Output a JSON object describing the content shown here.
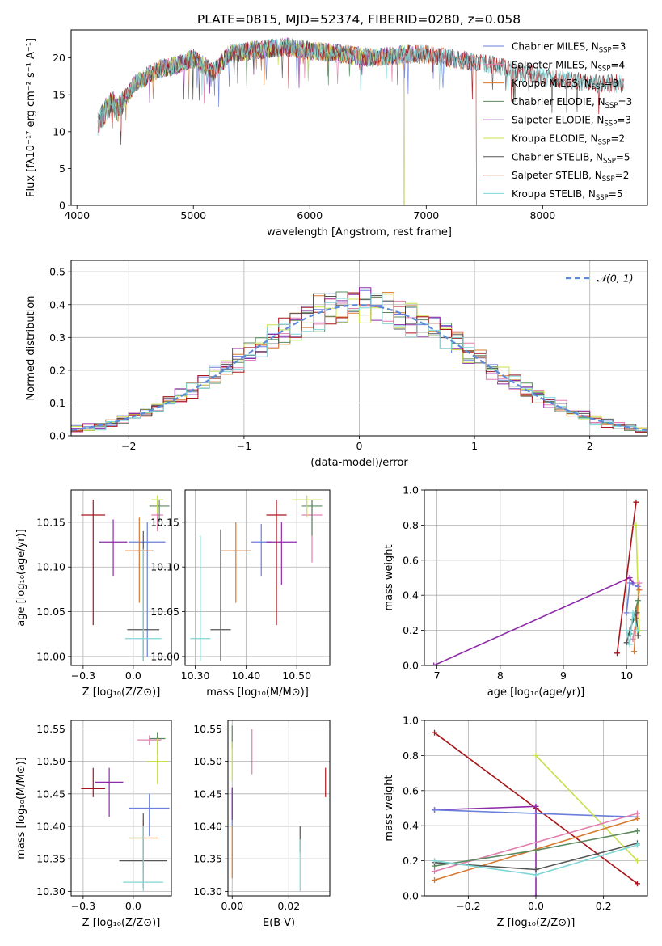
{
  "figure_title": "PLATE=0815, MJD=52374, FIBERID=0280, z=0.058",
  "palette": [
    "#6a7fdb",
    "#e27fb1",
    "#d8792f",
    "#5b8a5f",
    "#8e2ca8",
    "#c8e04a",
    "#555555",
    "#a8161c",
    "#7fd6d6"
  ],
  "chart_data": [
    {
      "id": "spectrum",
      "type": "line",
      "title": "PLATE=0815, MJD=52374, FIBERID=0280, z=0.058",
      "xlabel": "wavelength [Angstrom, rest frame]",
      "ylabel": "Flux [fλ10⁻¹⁷ erg cm⁻² s⁻¹ A⁻¹]",
      "xlim": [
        3950,
        8900
      ],
      "ylim": [
        0,
        23.8
      ],
      "xticks": [
        4000,
        5000,
        6000,
        7000,
        8000
      ],
      "yticks": [
        0,
        5,
        10,
        15,
        20
      ],
      "grid": false,
      "legend_position": "top-right",
      "spectrum_shape": {
        "x": [
          4180,
          4250,
          4300,
          4350,
          4500,
          4700,
          4860,
          5000,
          5170,
          5300,
          5500,
          5800,
          6000,
          6300,
          6560,
          6800,
          7000,
          7200,
          7400,
          7600,
          7800,
          8000,
          8200,
          8500
        ],
        "y": [
          11,
          13,
          14,
          13,
          16.5,
          18.5,
          19,
          20,
          18,
          20.5,
          21,
          21.5,
          21,
          20.5,
          20,
          20.5,
          20.5,
          20,
          19.5,
          19,
          18,
          17.5,
          17,
          16.5
        ]
      },
      "series": [
        {
          "name": "Chabrier MILES, N_SSP=3",
          "label_main": "Chabrier MILES, N",
          "label_sub": "SSP",
          "label_tail": "=3",
          "end": 7420
        },
        {
          "name": "Salpeter MILES, N_SSP=4",
          "label_main": "Salpeter MILES, N",
          "label_sub": "SSP",
          "label_tail": "=4",
          "end": 7420
        },
        {
          "name": "Kroupa MILES, N_SSP=3",
          "label_main": "Kroupa MILES, N",
          "label_sub": "SSP",
          "label_tail": "=3",
          "end": 7420
        },
        {
          "name": "Chabrier ELODIE, N_SSP=3",
          "label_main": "Chabrier ELODIE, N",
          "label_sub": "SSP",
          "label_tail": "=3",
          "end": 6800
        },
        {
          "name": "Salpeter ELODIE, N_SSP=3",
          "label_main": "Salpeter ELODIE, N",
          "label_sub": "SSP",
          "label_tail": "=3",
          "end": 6800
        },
        {
          "name": "Kroupa ELODIE, N_SSP=2",
          "label_main": "Kroupa ELODIE, N",
          "label_sub": "SSP",
          "label_tail": "=2",
          "end": 6800
        },
        {
          "name": "Chabrier STELIB, N_SSP=5",
          "label_main": "Chabrier STELIB, N",
          "label_sub": "SSP",
          "label_tail": "=5",
          "end": 8700
        },
        {
          "name": "Salpeter STELIB, N_SSP=2",
          "label_main": "Salpeter STELIB, N",
          "label_sub": "SSP",
          "label_tail": "=2",
          "end": 8700
        },
        {
          "name": "Kroupa STELIB, N_SSP=5",
          "label_main": "Kroupa STELIB, N",
          "label_sub": "SSP",
          "label_tail": "=5",
          "end": 8700
        }
      ]
    },
    {
      "id": "residuals",
      "type": "histogram",
      "xlabel": "(data-model)/error",
      "ylabel": "Normed distribution",
      "xlim": [
        -2.5,
        2.5
      ],
      "ylim": [
        0,
        0.535
      ],
      "xticks": [
        -2,
        -1,
        0,
        1,
        2
      ],
      "yticks": [
        0.0,
        0.1,
        0.2,
        0.3,
        0.4,
        0.5
      ],
      "grid": true,
      "legend_position": "top-right",
      "reference_curve": {
        "name": "N(0,1)",
        "label_script": "𝒩(0, 1)",
        "color": "#5b8bd8",
        "style": "dashed"
      },
      "bin_edges": [
        -2.5,
        -2.4,
        -2.3,
        -2.2,
        -2.1,
        -2.0,
        -1.9,
        -1.8,
        -1.7,
        -1.6,
        -1.5,
        -1.4,
        -1.3,
        -1.2,
        -1.1,
        -1.0,
        -0.9,
        -0.8,
        -0.7,
        -0.6,
        -0.5,
        -0.4,
        -0.3,
        -0.2,
        -0.1,
        0.0,
        0.1,
        0.2,
        0.3,
        0.4,
        0.5,
        0.6,
        0.7,
        0.8,
        0.9,
        1.0,
        1.1,
        1.2,
        1.3,
        1.4,
        1.5,
        1.6,
        1.7,
        1.8,
        1.9,
        2.0,
        2.1,
        2.2,
        2.3,
        2.4,
        2.5
      ]
    },
    {
      "id": "age-vs-Z",
      "type": "errorbar",
      "xlabel": "Z [log₁₀(Z/Z⊙)]",
      "ylabel": "age  [log₁₀(age/yr)]",
      "xlim": [
        -0.31,
        0.19
      ],
      "ylim": [
        9.99,
        10.186
      ],
      "xticks": [
        -0.25,
        0.0
      ],
      "yticks": [
        10.0,
        10.05,
        10.1,
        10.15
      ],
      "grid": true,
      "points": [
        {
          "s": 0,
          "x": 0.07,
          "y": 10.128,
          "ex": 0.09,
          "ey": [
            10.0,
            10.15
          ]
        },
        {
          "s": 1,
          "x": 0.12,
          "y": 10.158,
          "ex": 0.03,
          "ey": [
            10.14,
            10.175
          ]
        },
        {
          "s": 2,
          "x": 0.03,
          "y": 10.118,
          "ex": 0.07,
          "ey": [
            10.06,
            10.155
          ]
        },
        {
          "s": 3,
          "x": 0.13,
          "y": 10.168,
          "ex": 0.05,
          "ey": [
            10.15,
            10.175
          ]
        },
        {
          "s": 4,
          "x": -0.1,
          "y": 10.128,
          "ex": 0.07,
          "ey": [
            10.09,
            10.153
          ]
        },
        {
          "s": 5,
          "x": 0.12,
          "y": 10.175,
          "ex": 0.03,
          "ey": [
            10.16,
            10.18
          ]
        },
        {
          "s": 6,
          "x": 0.05,
          "y": 10.03,
          "ex": 0.08,
          "ey": [
            9.995,
            10.14
          ]
        },
        {
          "s": 7,
          "x": -0.2,
          "y": 10.158,
          "ex": 0.06,
          "ey": [
            10.035,
            10.175
          ]
        },
        {
          "s": 8,
          "x": 0.05,
          "y": 10.02,
          "ex": 0.09,
          "ey": [
            9.995,
            10.12
          ]
        }
      ]
    },
    {
      "id": "age-vs-mass",
      "type": "errorbar",
      "xlabel": "mass [log₁₀(M/M⊙)]",
      "ylabel": "",
      "xlim": [
        10.28,
        10.565
      ],
      "ylim": [
        9.99,
        10.186
      ],
      "xticks": [
        10.3,
        10.4,
        10.5
      ],
      "yticks": [
        10.0,
        10.05,
        10.1,
        10.15
      ],
      "grid": true,
      "points": [
        {
          "s": 0,
          "x": 10.43,
          "y": 10.128,
          "ex": 0.02,
          "ey": [
            10.09,
            10.148
          ]
        },
        {
          "s": 1,
          "x": 10.53,
          "y": 10.158,
          "ex": 0.02,
          "ey": [
            10.105,
            10.175
          ]
        },
        {
          "s": 2,
          "x": 10.38,
          "y": 10.118,
          "ex": 0.03,
          "ey": [
            10.06,
            10.15
          ]
        },
        {
          "s": 3,
          "x": 10.53,
          "y": 10.168,
          "ex": 0.02,
          "ey": [
            10.135,
            10.175
          ]
        },
        {
          "s": 4,
          "x": 10.47,
          "y": 10.128,
          "ex": 0.03,
          "ey": [
            10.08,
            10.15
          ]
        },
        {
          "s": 5,
          "x": 10.52,
          "y": 10.175,
          "ex": 0.03,
          "ey": [
            10.155,
            10.18
          ]
        },
        {
          "s": 6,
          "x": 10.35,
          "y": 10.03,
          "ex": 0.02,
          "ey": [
            9.995,
            10.142
          ]
        },
        {
          "s": 7,
          "x": 10.46,
          "y": 10.158,
          "ex": 0.02,
          "ey": [
            10.035,
            10.175
          ]
        },
        {
          "s": 8,
          "x": 10.31,
          "y": 10.02,
          "ex": 0.02,
          "ey": [
            9.995,
            10.135
          ]
        }
      ]
    },
    {
      "id": "weight-vs-age",
      "type": "line",
      "xlabel": "age  [log₁₀(age/yr)]",
      "ylabel": "mass weight",
      "xlim": [
        6.8,
        10.33
      ],
      "ylim": [
        0,
        1.0
      ],
      "xticks": [
        7,
        8,
        9,
        10
      ],
      "yticks": [
        0.0,
        0.2,
        0.4,
        0.6,
        0.8,
        1.0
      ],
      "grid": true,
      "lines": [
        {
          "s": 4,
          "x": [
            6.95,
            10.05,
            10.1
          ],
          "y": [
            0.0,
            0.5,
            0.47
          ]
        },
        {
          "s": 7,
          "x": [
            9.85,
            10.15
          ],
          "y": [
            0.07,
            0.93
          ]
        },
        {
          "s": 5,
          "x": [
            10.15,
            10.2
          ],
          "y": [
            0.8,
            0.2
          ]
        },
        {
          "s": 0,
          "x": [
            10.0,
            10.05,
            10.18
          ],
          "y": [
            0.3,
            0.47,
            0.45
          ]
        },
        {
          "s": 1,
          "x": [
            10.1,
            10.17,
            10.2
          ],
          "y": [
            0.15,
            0.3,
            0.47
          ]
        },
        {
          "s": 2,
          "x": [
            10.12,
            10.15,
            10.2
          ],
          "y": [
            0.08,
            0.27,
            0.43
          ]
        },
        {
          "s": 3,
          "x": [
            10.05,
            10.1,
            10.18
          ],
          "y": [
            0.18,
            0.26,
            0.37
          ]
        },
        {
          "s": 6,
          "x": [
            10.0,
            10.05,
            10.15,
            10.18
          ],
          "y": [
            0.13,
            0.2,
            0.3,
            0.17
          ]
        },
        {
          "s": 8,
          "x": [
            10.0,
            10.05,
            10.1,
            10.17
          ],
          "y": [
            0.2,
            0.12,
            0.3,
            0.2
          ]
        }
      ]
    },
    {
      "id": "mass-vs-Z",
      "type": "errorbar",
      "xlabel": "Z [log₁₀(Z/Z⊙)]",
      "ylabel": "mass [log₁₀(M/M⊙)]",
      "xlim": [
        -0.31,
        0.19
      ],
      "ylim": [
        10.293,
        10.563
      ],
      "xticks": [
        -0.25,
        0.0
      ],
      "yticks": [
        10.3,
        10.35,
        10.4,
        10.45,
        10.5,
        10.55
      ],
      "grid": true,
      "points": [
        {
          "s": 0,
          "x": 0.08,
          "y": 10.428,
          "ex": 0.1,
          "ey": [
            10.385,
            10.45
          ]
        },
        {
          "s": 1,
          "x": 0.08,
          "y": 10.533,
          "ex": 0.06,
          "ey": [
            10.525,
            10.54
          ]
        },
        {
          "s": 2,
          "x": 0.05,
          "y": 10.382,
          "ex": 0.07,
          "ey": [
            10.33,
            10.41
          ]
        },
        {
          "s": 3,
          "x": 0.12,
          "y": 10.535,
          "ex": 0.04,
          "ey": [
            10.51,
            10.545
          ]
        },
        {
          "s": 4,
          "x": -0.12,
          "y": 10.468,
          "ex": 0.07,
          "ey": [
            10.415,
            10.49
          ]
        },
        {
          "s": 5,
          "x": 0.12,
          "y": 10.5,
          "ex": 0.05,
          "ey": [
            10.465,
            10.535
          ]
        },
        {
          "s": 6,
          "x": 0.05,
          "y": 10.347,
          "ex": 0.12,
          "ey": [
            10.305,
            10.42
          ]
        },
        {
          "s": 7,
          "x": -0.2,
          "y": 10.458,
          "ex": 0.06,
          "ey": [
            10.445,
            10.49
          ]
        },
        {
          "s": 8,
          "x": 0.05,
          "y": 10.314,
          "ex": 0.1,
          "ey": [
            10.3,
            10.4
          ]
        }
      ]
    },
    {
      "id": "mass-vs-ebv",
      "type": "errorbar",
      "xlabel": "E(B-V)",
      "ylabel": "",
      "xlim": [
        -0.0015,
        0.0345
      ],
      "ylim": [
        10.293,
        10.563
      ],
      "xticks": [
        0.0,
        0.02
      ],
      "yticks": [
        10.3,
        10.35,
        10.4,
        10.45,
        10.5,
        10.55
      ],
      "grid": true,
      "points": [
        {
          "s": 0,
          "x": 0.0,
          "y": 10.428,
          "ex": 0.0,
          "ey": [
            10.4,
            10.46
          ]
        },
        {
          "s": 1,
          "x": 0.007,
          "y": 10.52,
          "ex": 0.0,
          "ey": [
            10.48,
            10.55
          ]
        },
        {
          "s": 2,
          "x": 0.0,
          "y": 10.36,
          "ex": 0.0,
          "ey": [
            10.32,
            10.4
          ]
        },
        {
          "s": 3,
          "x": 0.0,
          "y": 10.54,
          "ex": 0.0,
          "ey": [
            10.52,
            10.555
          ]
        },
        {
          "s": 4,
          "x": 0.0,
          "y": 10.44,
          "ex": 0.0,
          "ey": [
            10.41,
            10.46
          ]
        },
        {
          "s": 5,
          "x": 0.0,
          "y": 10.5,
          "ex": 0.0,
          "ey": [
            10.47,
            10.53
          ]
        },
        {
          "s": 6,
          "x": 0.024,
          "y": 10.38,
          "ex": 0.0,
          "ey": [
            10.36,
            10.4
          ]
        },
        {
          "s": 7,
          "x": 0.033,
          "y": 10.468,
          "ex": 0.0,
          "ey": [
            10.445,
            10.49
          ]
        },
        {
          "s": 8,
          "x": 0.024,
          "y": 10.34,
          "ex": 0.0,
          "ey": [
            10.3,
            10.38
          ]
        }
      ]
    },
    {
      "id": "weight-vs-Z",
      "type": "line",
      "xlabel": "Z [log₁₀(Z/Z⊙)]",
      "ylabel": "mass weight",
      "xlim": [
        -0.33,
        0.33
      ],
      "ylim": [
        0,
        1.0
      ],
      "xticks": [
        -0.2,
        0.0,
        0.2
      ],
      "yticks": [
        0.0,
        0.2,
        0.4,
        0.6,
        0.8,
        1.0
      ],
      "grid": true,
      "lines": [
        {
          "s": 7,
          "x": [
            -0.3,
            0.0,
            0.3
          ],
          "y": [
            0.93,
            0.5,
            0.07
          ]
        },
        {
          "s": 4,
          "x": [
            -0.3,
            0.0,
            0.0
          ],
          "y": [
            0.49,
            0.51,
            0.0
          ]
        },
        {
          "s": 0,
          "x": [
            -0.3,
            0.3
          ],
          "y": [
            0.49,
            0.45
          ]
        },
        {
          "s": 5,
          "x": [
            0.0,
            0.3
          ],
          "y": [
            0.8,
            0.2
          ]
        },
        {
          "s": 2,
          "x": [
            -0.3,
            0.3
          ],
          "y": [
            0.09,
            0.44
          ]
        },
        {
          "s": 1,
          "x": [
            -0.3,
            0.3
          ],
          "y": [
            0.14,
            0.47
          ]
        },
        {
          "s": 3,
          "x": [
            -0.3,
            0.0,
            0.3
          ],
          "y": [
            0.17,
            0.26,
            0.37
          ]
        },
        {
          "s": 6,
          "x": [
            -0.3,
            0.0,
            0.3
          ],
          "y": [
            0.19,
            0.15,
            0.3
          ]
        },
        {
          "s": 8,
          "x": [
            -0.3,
            0.0,
            0.3
          ],
          "y": [
            0.2,
            0.12,
            0.29
          ]
        }
      ]
    }
  ]
}
